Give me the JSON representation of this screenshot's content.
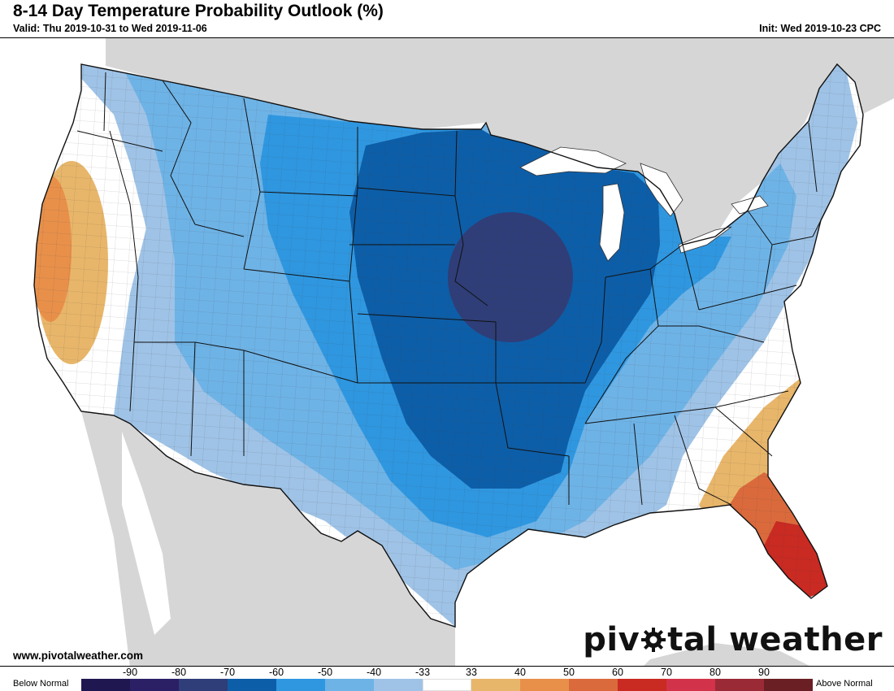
{
  "header": {
    "title": "8-14 Day Temperature Probability Outlook (%)",
    "valid": "Valid: Thu 2019-10-31 to Wed 2019-11-06",
    "init": "Init: Wed 2019-10-23 CPC"
  },
  "footer": {
    "website": "www.pivotalweather.com",
    "brand_prefix": "piv",
    "brand_suffix": "tal weather"
  },
  "legend": {
    "below_label": "Below Normal",
    "above_label": "Above Normal",
    "ticks": [
      "-90",
      "-80",
      "-70",
      "-60",
      "-50",
      "-40",
      "-33",
      "33",
      "40",
      "50",
      "60",
      "70",
      "80",
      "90"
    ],
    "colors": [
      "#1f1850",
      "#2b2066",
      "#2f3e78",
      "#0d5ea8",
      "#2f97e0",
      "#6eb3e6",
      "#9fc3e6",
      "#ffffff",
      "#e8b66a",
      "#e8904a",
      "#da6a3c",
      "#c92a22",
      "#d2334a",
      "#9a2a36",
      "#6a1f24"
    ]
  },
  "map": {
    "region": "Contiguous United States",
    "categories": [
      {
        "label": "-70",
        "color": "#2f3e78",
        "where": "Iowa / NE Missouri"
      },
      {
        "label": "-60",
        "color": "#0d5ea8",
        "where": "Central Plains, Upper Midwest"
      },
      {
        "label": "-50",
        "color": "#2f97e0",
        "where": "Northern Rockies to Ohio Valley"
      },
      {
        "label": "-40",
        "color": "#6eb3e6",
        "where": "Intermountain West, Southwest, Northeast"
      },
      {
        "label": "-33",
        "color": "#9fc3e6",
        "where": "Great Basin, Mid-Atlantic"
      },
      {
        "label": "50",
        "color": "#e8904a",
        "where": "Northern California, Georgia coast"
      },
      {
        "label": "60",
        "color": "#da6a3c",
        "where": "North Florida"
      },
      {
        "label": "70",
        "color": "#c92a22",
        "where": "Central / South Florida"
      }
    ]
  }
}
